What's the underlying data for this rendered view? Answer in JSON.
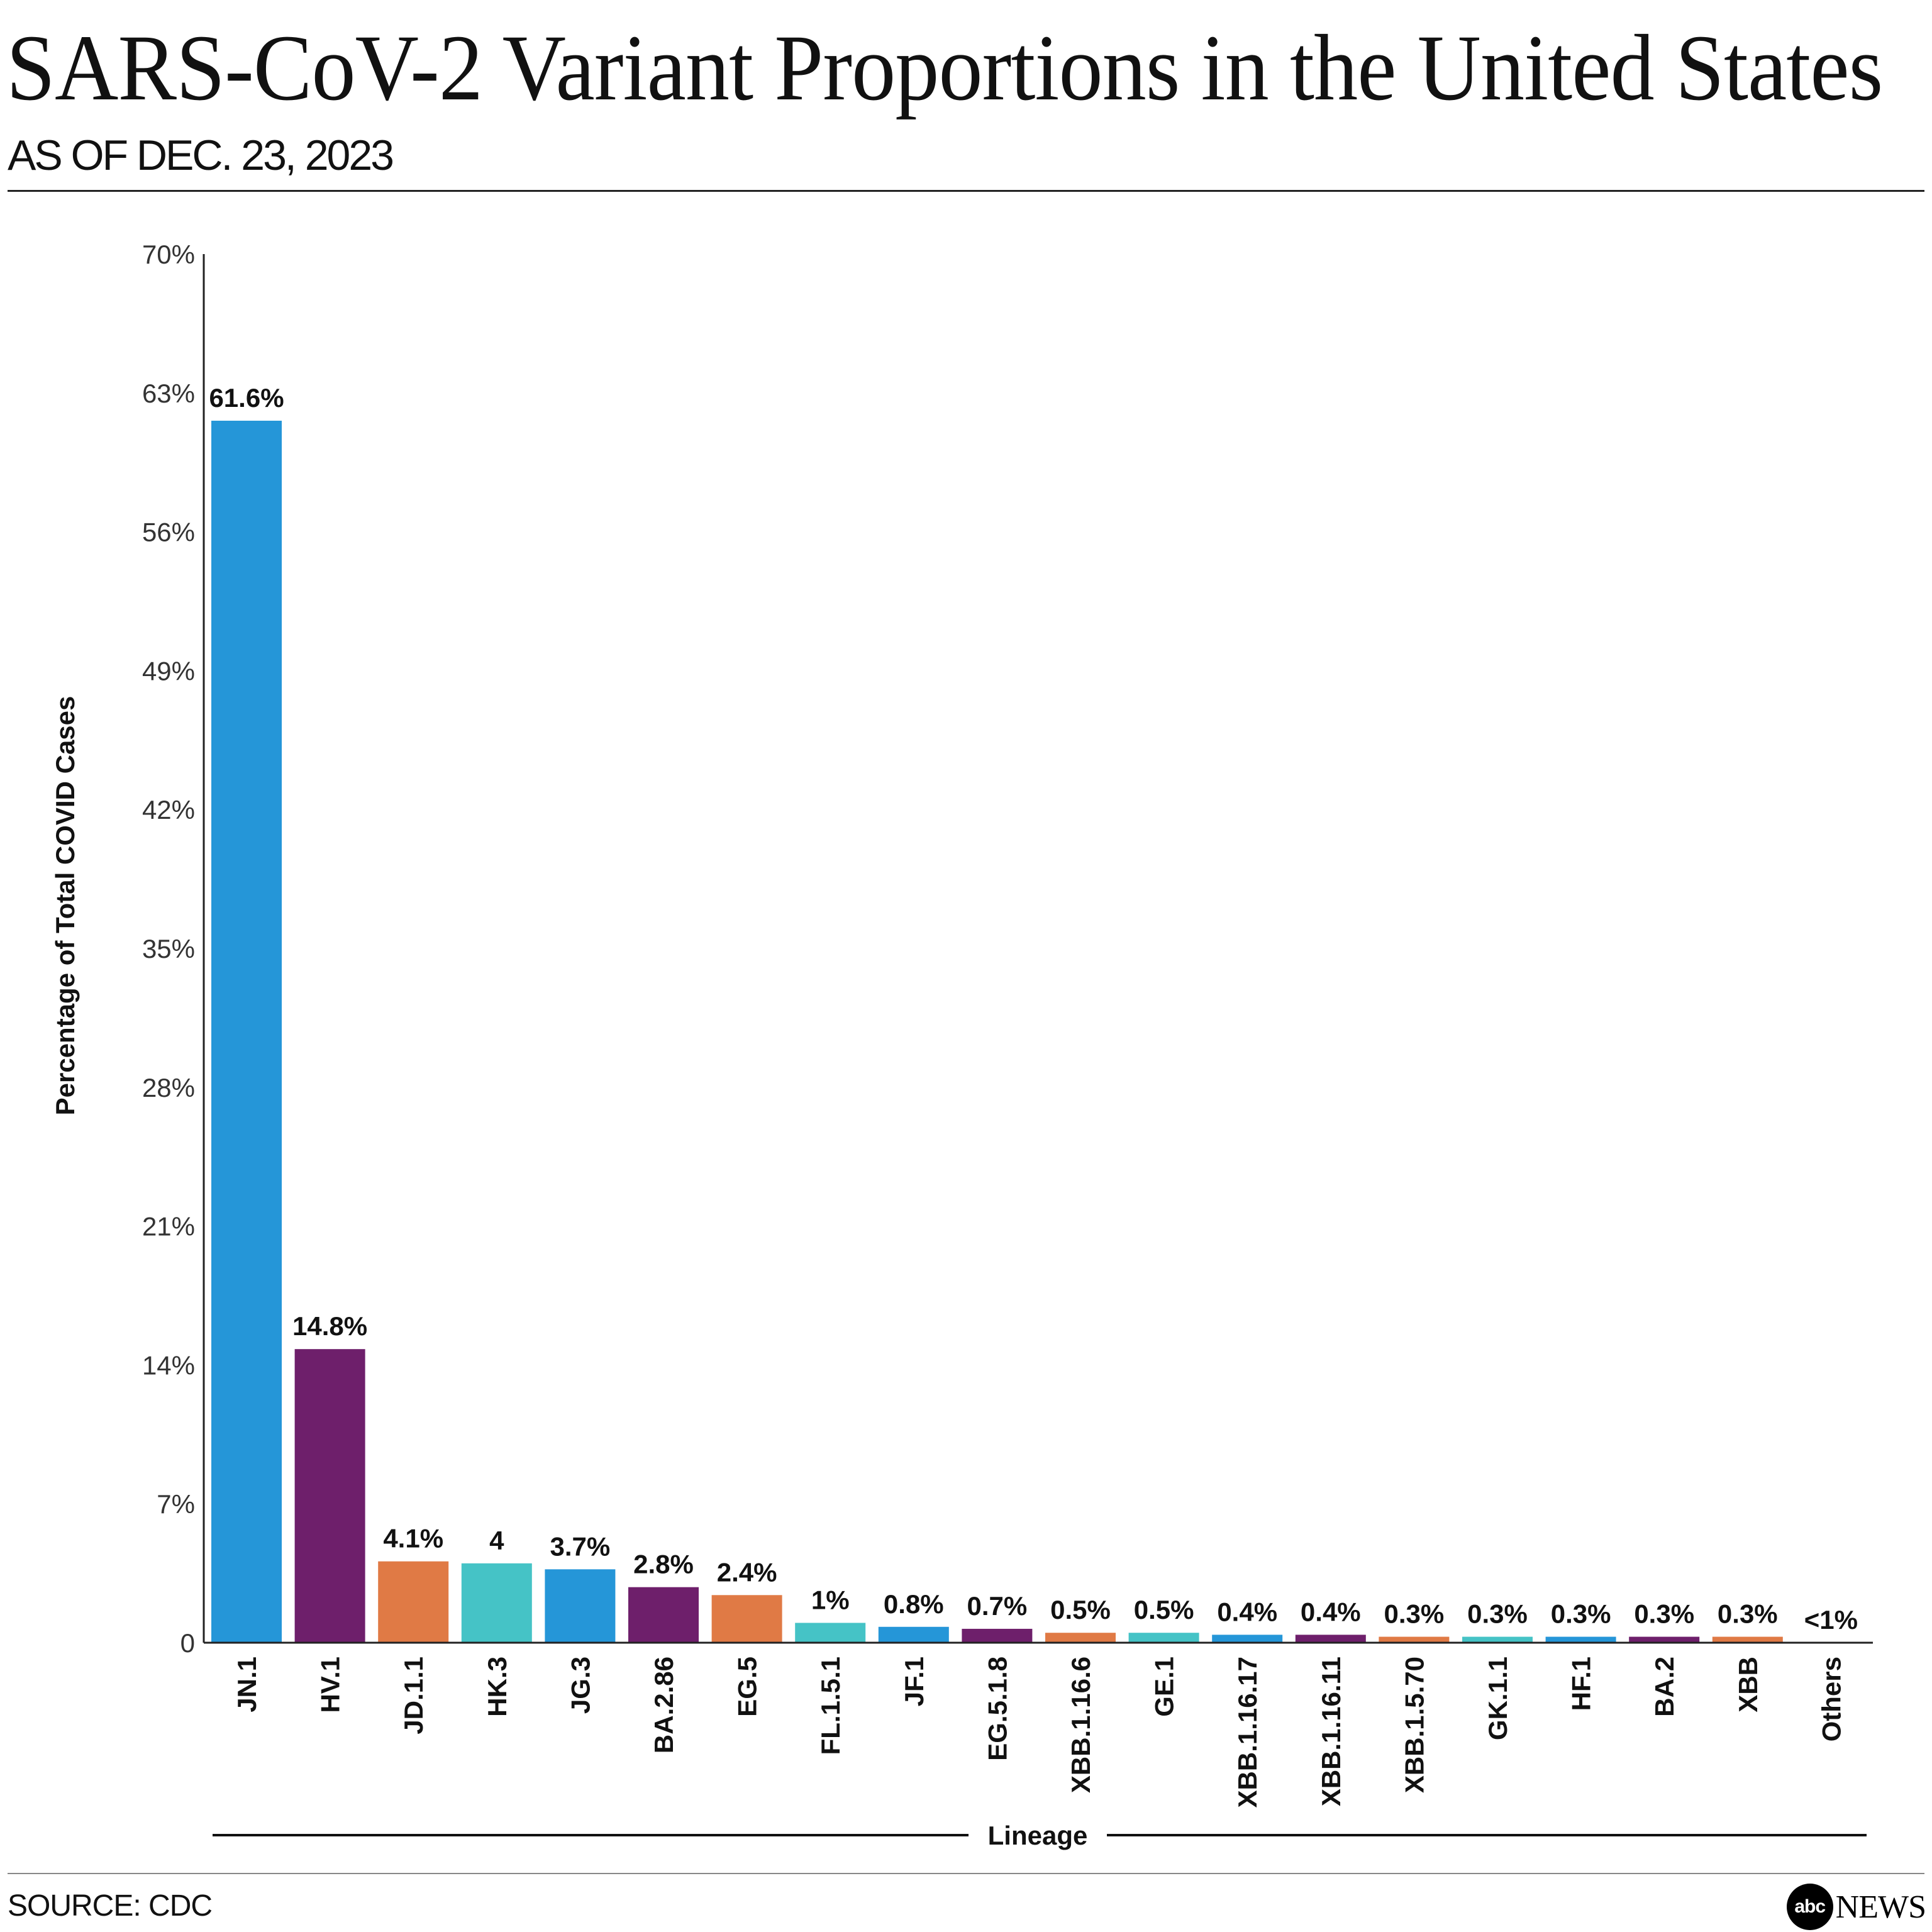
{
  "header": {
    "title": "SARS-CoV-2 Variant Proportions in the United States",
    "subtitle": "AS OF DEC. 23, 2023"
  },
  "footer": {
    "source": "SOURCE: CDC",
    "logo_mark": "abc",
    "logo_text": "NEWS"
  },
  "chart_data": {
    "type": "bar",
    "xlabel": "Lineage",
    "ylabel": "Percentage of Total COVID Cases",
    "ylim": [
      0,
      70
    ],
    "yticks": [
      0,
      7,
      14,
      21,
      28,
      35,
      42,
      49,
      56,
      63,
      70
    ],
    "ytick_labels": [
      "0",
      "7%",
      "14%",
      "21%",
      "28%",
      "35%",
      "42%",
      "49%",
      "56%",
      "63%",
      "70%"
    ],
    "grid": false,
    "categories": [
      "JN.1",
      "HV.1",
      "JD.1.1",
      "HK.3",
      "JG.3",
      "BA.2.86",
      "EG.5",
      "FL.1.5.1",
      "JF.1",
      "EG.5.1.8",
      "XBB.1.16.6",
      "GE.1",
      "XBB.1.16.17",
      "XBB.1.16.11",
      "XBB.1.5.70",
      "GK.1.1",
      "HF.1",
      "BA.2",
      "XBB",
      "Others"
    ],
    "values": [
      61.6,
      14.8,
      4.1,
      4,
      3.7,
      2.8,
      2.4,
      1,
      0.8,
      0.7,
      0.5,
      0.5,
      0.4,
      0.4,
      0.3,
      0.3,
      0.3,
      0.3,
      0.3,
      0
    ],
    "data_labels": [
      "61.6%",
      "14.8%",
      "4.1%",
      "4",
      "3.7%",
      "2.8%",
      "2.4%",
      "1%",
      "0.8%",
      "0.7%",
      "0.5%",
      "0.5%",
      "0.4%",
      "0.4%",
      "0.3%",
      "0.3%",
      "0.3%",
      "0.3%",
      "0.3%",
      "<1%"
    ],
    "colors": [
      "#2596d8",
      "#6e1f6b",
      "#e07a45",
      "#45c3c6",
      "#2596d8",
      "#6e1f6b",
      "#e07a45",
      "#45c3c6",
      "#2596d8",
      "#6e1f6b",
      "#e07a45",
      "#45c3c6",
      "#2596d8",
      "#6e1f6b",
      "#e07a45",
      "#45c3c6",
      "#2596d8",
      "#6e1f6b",
      "#e07a45",
      "#45c3c6"
    ]
  }
}
